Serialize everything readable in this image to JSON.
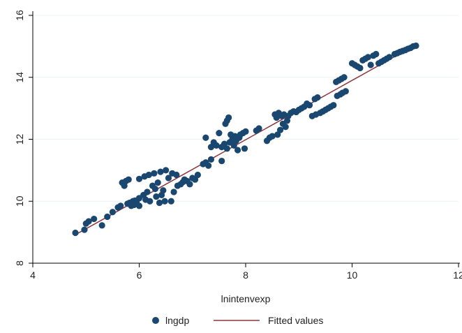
{
  "chart_data": {
    "type": "scatter",
    "xlabel": "lnintenvexp",
    "ylabel": "",
    "xlim": [
      4,
      12
    ],
    "ylim": [
      8,
      16
    ],
    "xticks": [
      4,
      6,
      8,
      10,
      12
    ],
    "yticks": [
      8,
      10,
      12,
      14,
      16
    ],
    "grid": "horizontal",
    "legend_position": "bottom",
    "colors": {
      "points": "#1a476f",
      "fit": "#90353b",
      "grid": "#eaf2f3",
      "axis": "#000000"
    },
    "series": [
      {
        "name": "lngdp",
        "kind": "scatter",
        "points": [
          [
            4.8,
            8.98
          ],
          [
            4.97,
            9.08
          ],
          [
            5.0,
            9.28
          ],
          [
            5.05,
            9.35
          ],
          [
            5.15,
            9.43
          ],
          [
            5.3,
            9.22
          ],
          [
            5.4,
            9.5
          ],
          [
            5.5,
            9.65
          ],
          [
            5.6,
            9.8
          ],
          [
            5.65,
            9.85
          ],
          [
            5.68,
            10.6
          ],
          [
            5.72,
            10.5
          ],
          [
            5.75,
            10.65
          ],
          [
            5.78,
            9.92
          ],
          [
            5.8,
            10.7
          ],
          [
            5.82,
            9.95
          ],
          [
            5.85,
            9.85
          ],
          [
            5.88,
            10.0
          ],
          [
            5.9,
            9.88
          ],
          [
            5.92,
            10.02
          ],
          [
            5.95,
            9.98
          ],
          [
            6.0,
            10.1
          ],
          [
            6.0,
            9.85
          ],
          [
            6.0,
            10.72
          ],
          [
            6.08,
            10.2
          ],
          [
            6.1,
            10.8
          ],
          [
            6.12,
            10.05
          ],
          [
            6.15,
            10.3
          ],
          [
            6.18,
            10.85
          ],
          [
            6.2,
            10.0
          ],
          [
            6.25,
            10.5
          ],
          [
            6.28,
            10.9
          ],
          [
            6.3,
            10.4
          ],
          [
            6.32,
            10.15
          ],
          [
            6.35,
            10.6
          ],
          [
            6.38,
            9.95
          ],
          [
            6.4,
            10.95
          ],
          [
            6.42,
            10.2
          ],
          [
            6.45,
            10.35
          ],
          [
            6.48,
            10.0
          ],
          [
            6.5,
            11.0
          ],
          [
            6.55,
            10.75
          ],
          [
            6.6,
            10.0
          ],
          [
            6.62,
            10.9
          ],
          [
            6.65,
            10.3
          ],
          [
            6.7,
            10.85
          ],
          [
            6.72,
            10.5
          ],
          [
            6.78,
            10.55
          ],
          [
            6.82,
            10.62
          ],
          [
            6.85,
            10.7
          ],
          [
            6.9,
            10.65
          ],
          [
            6.95,
            10.55
          ],
          [
            7.0,
            10.75
          ],
          [
            7.05,
            10.7
          ],
          [
            7.1,
            10.85
          ],
          [
            7.2,
            11.2
          ],
          [
            7.25,
            11.25
          ],
          [
            7.25,
            12.05
          ],
          [
            7.3,
            11.15
          ],
          [
            7.35,
            11.35
          ],
          [
            7.35,
            11.75
          ],
          [
            7.4,
            11.9
          ],
          [
            7.45,
            11.8
          ],
          [
            7.5,
            12.2
          ],
          [
            7.55,
            11.3
          ],
          [
            7.55,
            11.75
          ],
          [
            7.6,
            11.85
          ],
          [
            7.62,
            12.5
          ],
          [
            7.65,
            12.6
          ],
          [
            7.65,
            11.7
          ],
          [
            7.68,
            12.7
          ],
          [
            7.7,
            11.9
          ],
          [
            7.72,
            12.15
          ],
          [
            7.75,
            12.0
          ],
          [
            7.78,
            11.8
          ],
          [
            7.8,
            12.1
          ],
          [
            7.82,
            11.95
          ],
          [
            7.85,
            11.65
          ],
          [
            7.88,
            12.05
          ],
          [
            7.9,
            12.15
          ],
          [
            7.95,
            12.2
          ],
          [
            7.98,
            11.7
          ],
          [
            8.0,
            12.25
          ],
          [
            8.2,
            12.28
          ],
          [
            8.25,
            12.35
          ],
          [
            8.4,
            11.95
          ],
          [
            8.45,
            12.05
          ],
          [
            8.5,
            12.1
          ],
          [
            8.55,
            12.8
          ],
          [
            8.58,
            12.7
          ],
          [
            8.6,
            12.15
          ],
          [
            8.62,
            12.85
          ],
          [
            8.65,
            12.3
          ],
          [
            8.68,
            12.75
          ],
          [
            8.7,
            12.5
          ],
          [
            8.72,
            12.8
          ],
          [
            8.75,
            12.4
          ],
          [
            8.78,
            12.6
          ],
          [
            8.8,
            12.75
          ],
          [
            8.85,
            12.85
          ],
          [
            8.9,
            12.9
          ],
          [
            8.95,
            12.88
          ],
          [
            9.0,
            12.95
          ],
          [
            9.05,
            13.0
          ],
          [
            9.1,
            13.05
          ],
          [
            9.15,
            13.15
          ],
          [
            9.2,
            13.1
          ],
          [
            9.25,
            12.75
          ],
          [
            9.3,
            13.3
          ],
          [
            9.32,
            12.8
          ],
          [
            9.35,
            13.35
          ],
          [
            9.4,
            12.85
          ],
          [
            9.45,
            12.9
          ],
          [
            9.5,
            12.95
          ],
          [
            9.55,
            13.0
          ],
          [
            9.6,
            13.05
          ],
          [
            9.65,
            13.1
          ],
          [
            9.7,
            13.85
          ],
          [
            9.72,
            13.4
          ],
          [
            9.75,
            13.9
          ],
          [
            9.78,
            13.45
          ],
          [
            9.8,
            13.95
          ],
          [
            9.82,
            13.5
          ],
          [
            9.85,
            14.0
          ],
          [
            9.88,
            13.55
          ],
          [
            10.0,
            14.45
          ],
          [
            10.05,
            14.4
          ],
          [
            10.1,
            14.35
          ],
          [
            10.15,
            14.3
          ],
          [
            10.2,
            14.55
          ],
          [
            10.25,
            14.6
          ],
          [
            10.3,
            14.65
          ],
          [
            10.35,
            14.4
          ],
          [
            10.4,
            14.7
          ],
          [
            10.45,
            14.75
          ],
          [
            10.5,
            14.45
          ],
          [
            10.55,
            14.5
          ],
          [
            10.6,
            14.55
          ],
          [
            10.65,
            14.6
          ],
          [
            10.7,
            14.65
          ],
          [
            10.8,
            14.75
          ],
          [
            10.85,
            14.78
          ],
          [
            10.9,
            14.82
          ],
          [
            10.95,
            14.85
          ],
          [
            11.0,
            14.88
          ],
          [
            11.05,
            14.92
          ],
          [
            11.1,
            14.95
          ],
          [
            11.15,
            15.0
          ],
          [
            11.2,
            15.02
          ]
        ]
      },
      {
        "name": "Fitted values",
        "kind": "line",
        "x": [
          4.8,
          11.2
        ],
        "y": [
          8.92,
          15.05
        ]
      }
    ]
  }
}
